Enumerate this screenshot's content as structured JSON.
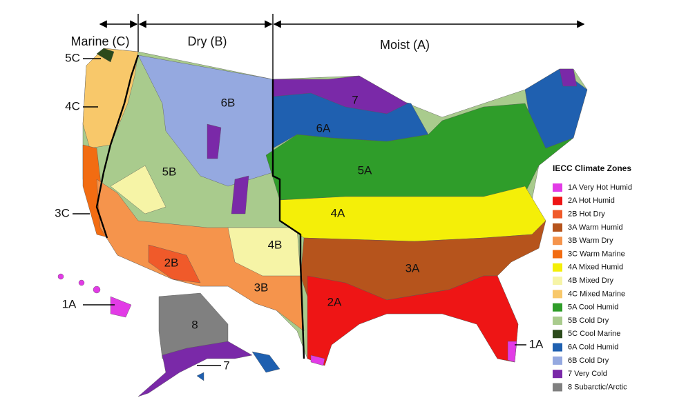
{
  "header": {
    "regions": [
      "Marine (C)",
      "Dry (B)",
      "Moist (A)"
    ]
  },
  "map": {
    "zone_labels": [
      "5C",
      "4C",
      "3C",
      "1A",
      "6B",
      "5B",
      "2B",
      "3B",
      "4B",
      "7",
      "6A",
      "5A",
      "4A",
      "3A",
      "2A",
      "1A",
      "8",
      "7"
    ]
  },
  "legend": {
    "title": "IECC Climate Zones",
    "items": [
      {
        "label": "1A Very Hot Humid",
        "color": "#e23be6"
      },
      {
        "label": "2A Hot Humid",
        "color": "#ee1515"
      },
      {
        "label": "2B Hot Dry",
        "color": "#f05a2a"
      },
      {
        "label": "3A Warm Humid",
        "color": "#b6541c"
      },
      {
        "label": "3B Warm Dry",
        "color": "#f5944c"
      },
      {
        "label": "3C Warm Marine",
        "color": "#f26c12"
      },
      {
        "label": "4A Mixed Humid",
        "color": "#f4ef08"
      },
      {
        "label": "4B Mixed Dry",
        "color": "#f6f4a6"
      },
      {
        "label": "4C Mixed Marine",
        "color": "#f8c86a"
      },
      {
        "label": "5A Cool Humid",
        "color": "#2f9d2a"
      },
      {
        "label": "5B Cold Dry",
        "color": "#a9cb8d"
      },
      {
        "label": "5C Cool Marine",
        "color": "#2b4a1b"
      },
      {
        "label": "6A Cold Humid",
        "color": "#1f60b0"
      },
      {
        "label": "6B Cold Dry",
        "color": "#95a9e0"
      },
      {
        "label": "7 Very Cold",
        "color": "#7a29a8"
      },
      {
        "label": "8 Subarctic/Arctic",
        "color": "#808080"
      }
    ]
  }
}
